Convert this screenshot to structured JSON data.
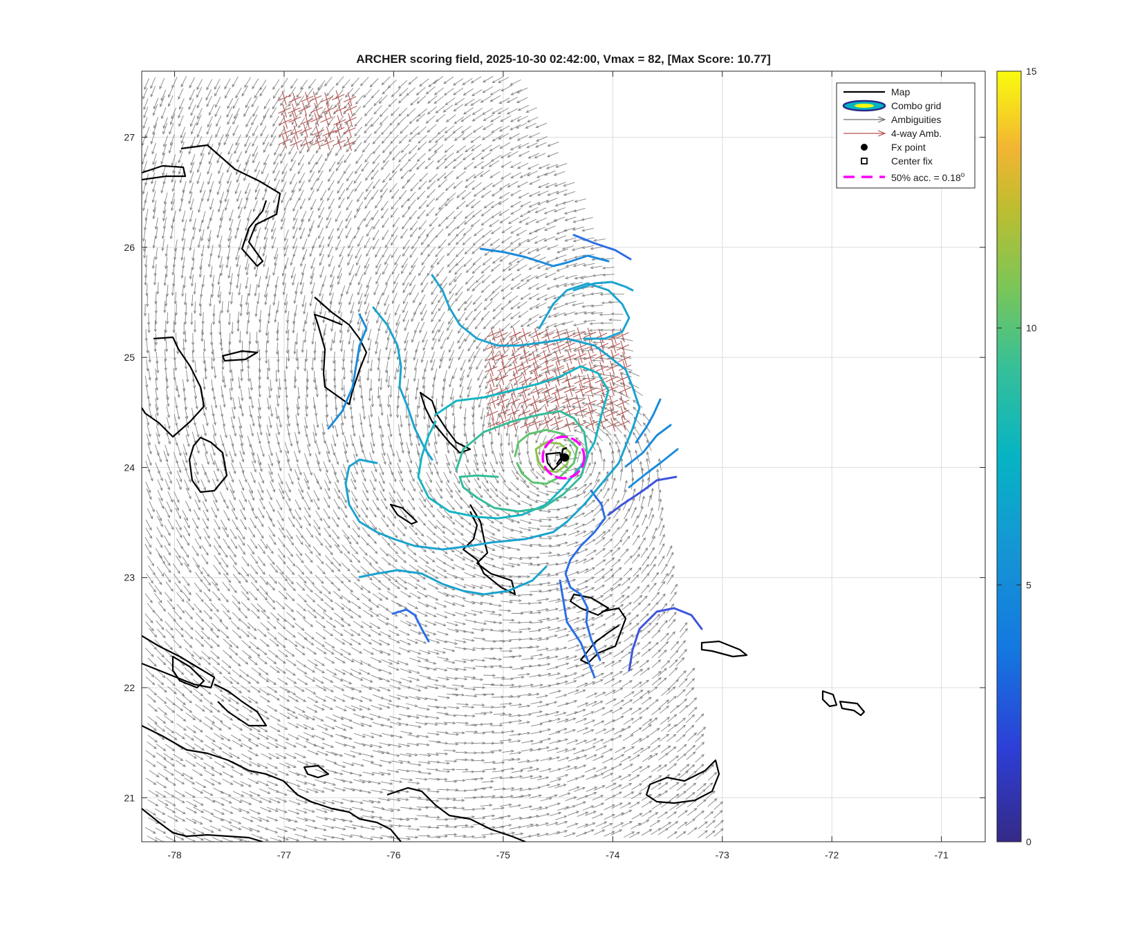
{
  "chart_data": {
    "type": "scatter",
    "title": "ARCHER scoring field, 2025-10-30 02:42:00, Vmax = 82, [Max Score: 10.77]",
    "xlim": [
      -78.3,
      -70.6
    ],
    "ylim": [
      20.6,
      27.6
    ],
    "xticks": [
      -78,
      -77,
      -76,
      -75,
      -74,
      -73,
      -72,
      -71
    ],
    "yticks": [
      21,
      22,
      23,
      24,
      25,
      26,
      27
    ],
    "grid": true,
    "legend_position": "top-right",
    "legend": [
      {
        "label": "Map"
      },
      {
        "label": "Combo grid"
      },
      {
        "label": "Ambiguities"
      },
      {
        "label": "4-way Amb."
      },
      {
        "label": "Fx point"
      },
      {
        "label": "Center fix"
      },
      {
        "label": "50% acc. = 0.18",
        "sup": "o"
      }
    ],
    "colorbar": {
      "limits": [
        0,
        15
      ],
      "ticks": [
        0,
        5,
        10,
        15
      ]
    },
    "storm_center": {
      "lon": -74.42,
      "lat": 24.11
    },
    "accuracy_radius_deg": 0.18,
    "swath_east_edge": [
      [
        -74.8,
        27.6
      ],
      [
        -74.0,
        26.0
      ],
      [
        -73.6,
        24.2
      ],
      [
        -73.4,
        22.5
      ],
      [
        -73.0,
        20.6
      ]
    ]
  },
  "colors": {
    "map": "#000000",
    "ambiguity": "#6e6e6e",
    "four_way": "#b5524f",
    "accuracy": "#ff00ff"
  }
}
